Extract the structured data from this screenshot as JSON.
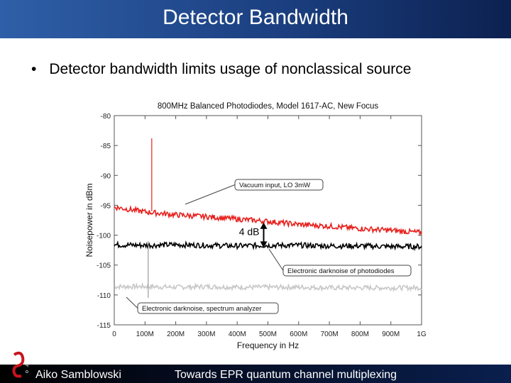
{
  "slide": {
    "title": "Detector Bandwidth",
    "bullet": "Detector bandwidth limits usage of nonclassical source",
    "footer_left": "Aiko Samblowski",
    "footer_center": "Towards EPR quantum channel multiplexing",
    "logo_text": [
      "i",
      "q",
      "o"
    ]
  },
  "colors": {
    "title_bar": "#1b3f80",
    "series_red": "#e8201c",
    "series_black": "#000000",
    "series_gray": "#c8c8c8"
  },
  "chart_data": {
    "type": "line",
    "title": "800MHz Balanced Photodiodes, Model 1617-AC, New Focus",
    "xlabel": "Frequency in Hz",
    "ylabel": "Noisepower in dBm",
    "xlim": [
      0,
      1000
    ],
    "ylim": [
      -115,
      -80
    ],
    "x_ticks": [
      0,
      100,
      200,
      300,
      400,
      500,
      600,
      700,
      800,
      900,
      1000
    ],
    "x_tick_labels": [
      "0",
      "100M",
      "200M",
      "300M",
      "400M",
      "500M",
      "600M",
      "700M",
      "800M",
      "900M",
      "1G"
    ],
    "y_ticks": [
      -80,
      -85,
      -90,
      -95,
      -100,
      -105,
      -110,
      -115
    ],
    "y_tick_labels": [
      "-80",
      "-85",
      "-90",
      "-95",
      "-100",
      "-105",
      "-110",
      "-115"
    ],
    "series": [
      {
        "key": "vacuum",
        "color": "#e8201c",
        "x": [
          0,
          100,
          200,
          300,
          400,
          500,
          600,
          700,
          800,
          900,
          1000
        ],
        "y": [
          -95.3,
          -96.1,
          -96.6,
          -96.9,
          -97.3,
          -97.7,
          -98.2,
          -98.5,
          -98.9,
          -99.2,
          -99.6
        ],
        "noise": 0.45
      },
      {
        "key": "detector_dark",
        "color": "#000000",
        "x": [
          0,
          100,
          200,
          300,
          400,
          500,
          600,
          700,
          800,
          900,
          1000
        ],
        "y": [
          -101.6,
          -101.7,
          -101.6,
          -101.7,
          -101.8,
          -101.7,
          -101.7,
          -101.8,
          -101.8,
          -101.9,
          -101.9
        ],
        "noise": 0.45
      },
      {
        "key": "analyzer_dark",
        "color": "#c8c8c8",
        "x": [
          0,
          100,
          200,
          300,
          400,
          500,
          600,
          700,
          800,
          900,
          1000
        ],
        "y": [
          -108.6,
          -108.6,
          -108.7,
          -108.6,
          -108.7,
          -108.7,
          -108.7,
          -108.8,
          -108.8,
          -108.8,
          -108.8
        ],
        "noise": 0.4
      }
    ],
    "spike": {
      "x": 122,
      "y_top": -83.8,
      "y_base": -110.5
    },
    "annotations": [
      {
        "key": "vacuum",
        "text": "Vacuum input, LO 3mW"
      },
      {
        "key": "detector_dark",
        "text": "Electronic darknoise of photodiodes"
      },
      {
        "key": "analyzer_dark",
        "text": "Electronic darknoise, spectrum analyzer"
      }
    ],
    "gap_label": {
      "text": "4 dB",
      "x": 500,
      "y_top": -98,
      "y_bottom": -102
    },
    "grid": false,
    "legend": "none"
  }
}
